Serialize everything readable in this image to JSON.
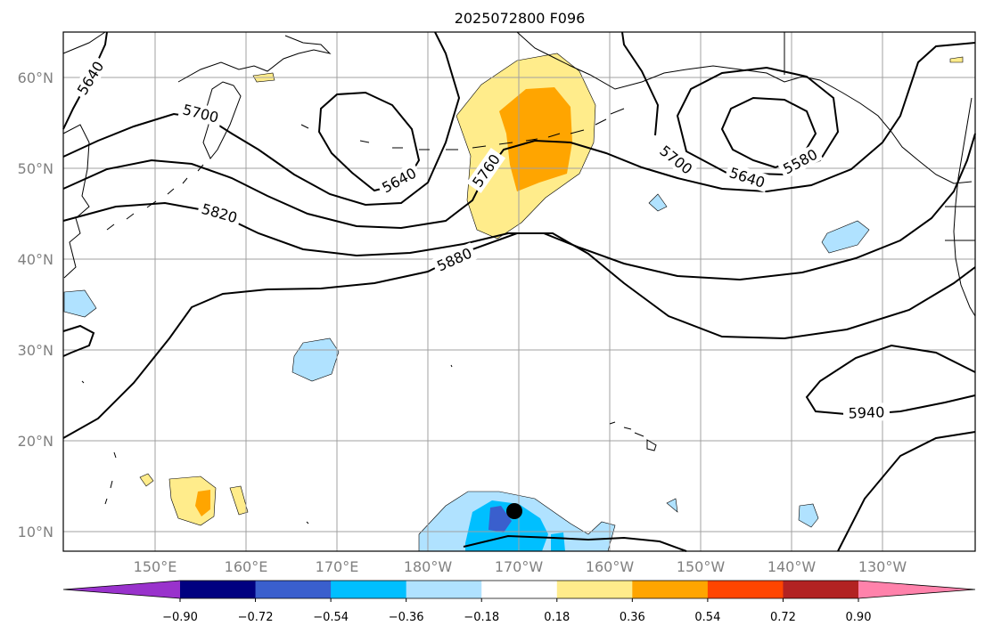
{
  "title": "2025072800 F096",
  "colors": {
    "below_min": "#9932cc",
    "bins": [
      "#000080",
      "#3a5fcd",
      "#00bfff",
      "#b0e2ff",
      "#ffffff",
      "#ffec8b",
      "#ffa500",
      "#ff4500",
      "#b22222"
    ],
    "above_max": "#ff82ab"
  },
  "colorbar_ticks": [
    "−0.90",
    "−0.72",
    "−0.54",
    "−0.36",
    "−0.18",
    "0.18",
    "0.36",
    "0.54",
    "0.72",
    "0.90"
  ],
  "lon_ticks": [
    "150°E",
    "160°E",
    "170°E",
    "180°W",
    "170°W",
    "160°W",
    "150°W",
    "140°W",
    "130°W"
  ],
  "lat_ticks": [
    "60°N",
    "50°N",
    "40°N",
    "30°N",
    "20°N",
    "10°N"
  ],
  "contour_labels": [
    "5640",
    "5700",
    "5640",
    "5760",
    "5700",
    "5640",
    "5580",
    "5820",
    "5880",
    "5940"
  ],
  "marker": "station-dot"
}
